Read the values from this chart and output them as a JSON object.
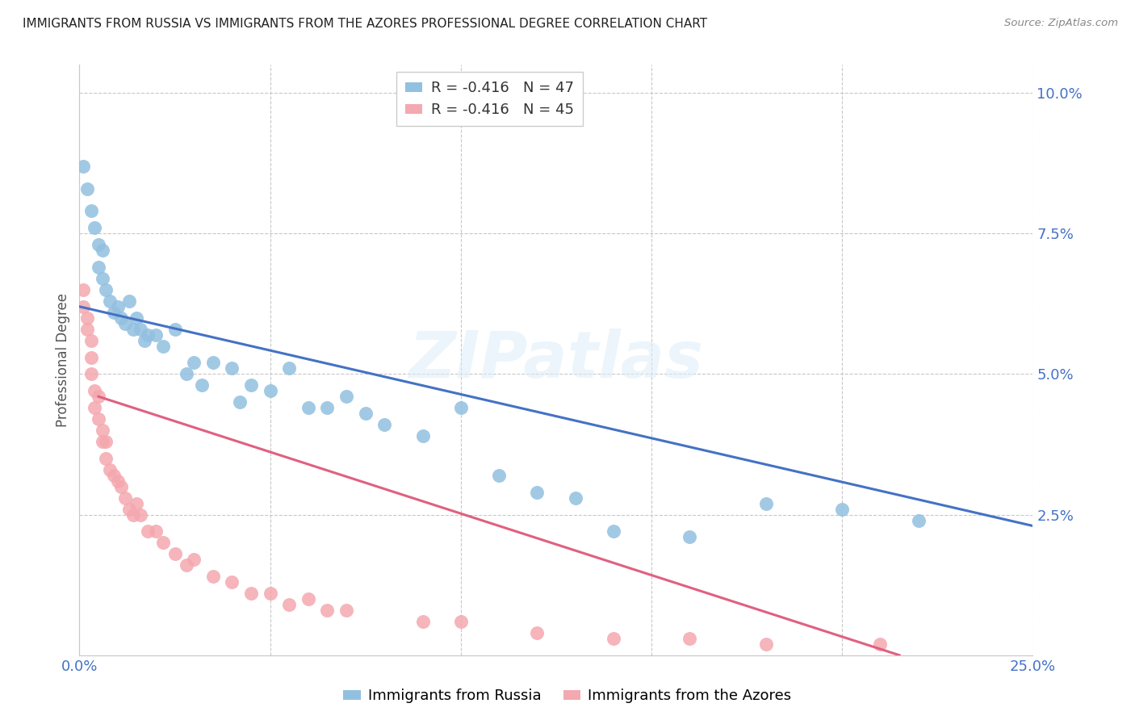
{
  "title": "IMMIGRANTS FROM RUSSIA VS IMMIGRANTS FROM THE AZORES PROFESSIONAL DEGREE CORRELATION CHART",
  "source": "Source: ZipAtlas.com",
  "ylabel": "Professional Degree",
  "xlim": [
    0.0,
    0.25
  ],
  "ylim": [
    0.0,
    0.105
  ],
  "russia_R": "-0.416",
  "russia_N": "47",
  "azores_R": "-0.416",
  "azores_N": "45",
  "blue_color": "#92c0e0",
  "pink_color": "#f4a8b0",
  "blue_line_color": "#4472c4",
  "pink_line_color": "#e06080",
  "russia_line_x": [
    0.0,
    0.25
  ],
  "russia_line_y": [
    0.062,
    0.023
  ],
  "azores_line_x": [
    0.005,
    0.215
  ],
  "azores_line_y": [
    0.046,
    0.0
  ],
  "russia_x": [
    0.001,
    0.002,
    0.003,
    0.004,
    0.005,
    0.005,
    0.006,
    0.006,
    0.007,
    0.008,
    0.009,
    0.01,
    0.011,
    0.012,
    0.013,
    0.014,
    0.015,
    0.016,
    0.017,
    0.018,
    0.02,
    0.022,
    0.025,
    0.028,
    0.03,
    0.032,
    0.035,
    0.04,
    0.042,
    0.045,
    0.05,
    0.055,
    0.06,
    0.065,
    0.07,
    0.075,
    0.08,
    0.09,
    0.1,
    0.11,
    0.12,
    0.13,
    0.14,
    0.16,
    0.18,
    0.2,
    0.22
  ],
  "russia_y": [
    0.087,
    0.083,
    0.079,
    0.076,
    0.073,
    0.069,
    0.067,
    0.072,
    0.065,
    0.063,
    0.061,
    0.062,
    0.06,
    0.059,
    0.063,
    0.058,
    0.06,
    0.058,
    0.056,
    0.057,
    0.057,
    0.055,
    0.058,
    0.05,
    0.052,
    0.048,
    0.052,
    0.051,
    0.045,
    0.048,
    0.047,
    0.051,
    0.044,
    0.044,
    0.046,
    0.043,
    0.041,
    0.039,
    0.044,
    0.032,
    0.029,
    0.028,
    0.022,
    0.021,
    0.027,
    0.026,
    0.024
  ],
  "azores_x": [
    0.001,
    0.001,
    0.002,
    0.002,
    0.003,
    0.003,
    0.003,
    0.004,
    0.004,
    0.005,
    0.005,
    0.006,
    0.006,
    0.007,
    0.007,
    0.008,
    0.009,
    0.01,
    0.011,
    0.012,
    0.013,
    0.014,
    0.015,
    0.016,
    0.018,
    0.02,
    0.022,
    0.025,
    0.028,
    0.03,
    0.035,
    0.04,
    0.045,
    0.05,
    0.055,
    0.06,
    0.065,
    0.07,
    0.09,
    0.1,
    0.12,
    0.14,
    0.16,
    0.18,
    0.21
  ],
  "azores_y": [
    0.065,
    0.062,
    0.06,
    0.058,
    0.056,
    0.053,
    0.05,
    0.047,
    0.044,
    0.046,
    0.042,
    0.04,
    0.038,
    0.038,
    0.035,
    0.033,
    0.032,
    0.031,
    0.03,
    0.028,
    0.026,
    0.025,
    0.027,
    0.025,
    0.022,
    0.022,
    0.02,
    0.018,
    0.016,
    0.017,
    0.014,
    0.013,
    0.011,
    0.011,
    0.009,
    0.01,
    0.008,
    0.008,
    0.006,
    0.006,
    0.004,
    0.003,
    0.003,
    0.002,
    0.002
  ]
}
